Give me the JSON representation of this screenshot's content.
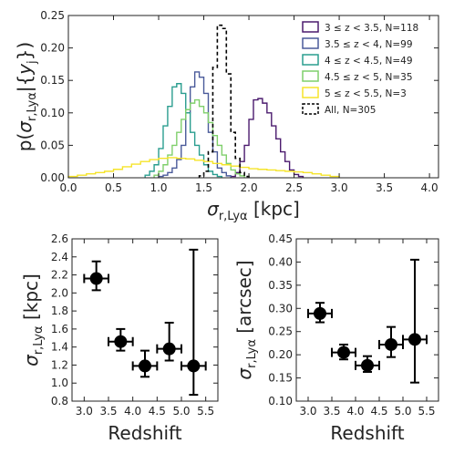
{
  "chart_data": [
    {
      "type": "histogram",
      "xlabel": "σ_r,Lyα [kpc]",
      "ylabel": "p(σ_r,Lyα | {y_j})",
      "xlim": [
        0.0,
        4.1
      ],
      "ylim": [
        0.0,
        0.25
      ],
      "xticks": [
        "0.0",
        "0.5",
        "1.0",
        "1.5",
        "2.0",
        "2.5",
        "3.0",
        "3.5",
        "4.0"
      ],
      "yticks": [
        "0.00",
        "0.05",
        "0.10",
        "0.15",
        "0.20",
        "0.25"
      ],
      "bin_width": 0.05,
      "legend_position": "top-right",
      "series": [
        {
          "name": "3 ≤ z < 3.5, N=118",
          "color": "#4b1b6e",
          "dashed": false,
          "bins": [
            [
              1.8,
              0.002
            ],
            [
              1.85,
              0.008
            ],
            [
              1.9,
              0.025
            ],
            [
              1.95,
              0.05
            ],
            [
              2.0,
              0.09
            ],
            [
              2.05,
              0.12
            ],
            [
              2.1,
              0.122
            ],
            [
              2.15,
              0.115
            ],
            [
              2.2,
              0.1
            ],
            [
              2.25,
              0.08
            ],
            [
              2.3,
              0.06
            ],
            [
              2.35,
              0.04
            ],
            [
              2.4,
              0.025
            ],
            [
              2.45,
              0.012
            ],
            [
              2.5,
              0.005
            ],
            [
              2.55,
              0.002
            ]
          ]
        },
        {
          "name": "3.5 ≤ z < 4, N=99",
          "color": "#4a5a9a",
          "dashed": false,
          "bins": [
            [
              1.0,
              0.002
            ],
            [
              1.05,
              0.004
            ],
            [
              1.1,
              0.008
            ],
            [
              1.15,
              0.015
            ],
            [
              1.2,
              0.028
            ],
            [
              1.25,
              0.05
            ],
            [
              1.3,
              0.1
            ],
            [
              1.35,
              0.14
            ],
            [
              1.4,
              0.163
            ],
            [
              1.45,
              0.155
            ],
            [
              1.5,
              0.13
            ],
            [
              1.55,
              0.07
            ],
            [
              1.6,
              0.04
            ],
            [
              1.65,
              0.015
            ],
            [
              1.7,
              0.008
            ],
            [
              1.75,
              0.003
            ]
          ]
        },
        {
          "name": "4 ≤ z < 4.5, N=49",
          "color": "#2a9d8f",
          "dashed": false,
          "bins": [
            [
              0.85,
              0.004
            ],
            [
              0.9,
              0.01
            ],
            [
              0.95,
              0.02
            ],
            [
              1.0,
              0.045
            ],
            [
              1.05,
              0.08
            ],
            [
              1.1,
              0.11
            ],
            [
              1.15,
              0.14
            ],
            [
              1.2,
              0.145
            ],
            [
              1.25,
              0.13
            ],
            [
              1.3,
              0.1
            ],
            [
              1.35,
              0.07
            ],
            [
              1.4,
              0.05
            ],
            [
              1.45,
              0.035
            ],
            [
              1.5,
              0.02
            ],
            [
              1.55,
              0.01
            ],
            [
              1.6,
              0.005
            ],
            [
              1.65,
              0.002
            ]
          ]
        },
        {
          "name": "4.5 ≤ z < 5, N=35",
          "color": "#7fcf6b",
          "dashed": false,
          "bins": [
            [
              0.95,
              0.004
            ],
            [
              1.0,
              0.01
            ],
            [
              1.05,
              0.02
            ],
            [
              1.1,
              0.035
            ],
            [
              1.15,
              0.05
            ],
            [
              1.2,
              0.07
            ],
            [
              1.25,
              0.09
            ],
            [
              1.3,
              0.105
            ],
            [
              1.35,
              0.115
            ],
            [
              1.4,
              0.12
            ],
            [
              1.45,
              0.11
            ],
            [
              1.5,
              0.1
            ],
            [
              1.55,
              0.085
            ],
            [
              1.6,
              0.065
            ],
            [
              1.65,
              0.05
            ],
            [
              1.7,
              0.035
            ],
            [
              1.75,
              0.022
            ],
            [
              1.8,
              0.012
            ],
            [
              1.85,
              0.006
            ],
            [
              1.9,
              0.003
            ]
          ]
        },
        {
          "name": "5 ≤ z < 5.5, N=3",
          "color": "#f5e42a",
          "dashed": false,
          "bins": [
            [
              0.0,
              0.002
            ],
            [
              0.1,
              0.004
            ],
            [
              0.2,
              0.006
            ],
            [
              0.3,
              0.008
            ],
            [
              0.4,
              0.01
            ],
            [
              0.5,
              0.013
            ],
            [
              0.6,
              0.017
            ],
            [
              0.7,
              0.021
            ],
            [
              0.8,
              0.025
            ],
            [
              0.9,
              0.028
            ],
            [
              1.0,
              0.03
            ],
            [
              1.1,
              0.031
            ],
            [
              1.2,
              0.03
            ],
            [
              1.3,
              0.029
            ],
            [
              1.4,
              0.027
            ],
            [
              1.5,
              0.025
            ],
            [
              1.6,
              0.022
            ],
            [
              1.7,
              0.02
            ],
            [
              1.8,
              0.018
            ],
            [
              1.9,
              0.016
            ],
            [
              2.0,
              0.014
            ],
            [
              2.1,
              0.013
            ],
            [
              2.2,
              0.012
            ],
            [
              2.3,
              0.011
            ],
            [
              2.4,
              0.01
            ],
            [
              2.5,
              0.009
            ],
            [
              2.6,
              0.008
            ],
            [
              2.7,
              0.006
            ],
            [
              2.8,
              0.004
            ],
            [
              2.9,
              0.002
            ]
          ]
        },
        {
          "name": "All, N=305",
          "color": "#000000",
          "dashed": true,
          "bins": [
            [
              1.45,
              0.003
            ],
            [
              1.5,
              0.01
            ],
            [
              1.55,
              0.04
            ],
            [
              1.6,
              0.17
            ],
            [
              1.65,
              0.235
            ],
            [
              1.7,
              0.23
            ],
            [
              1.75,
              0.16
            ],
            [
              1.8,
              0.07
            ],
            [
              1.85,
              0.03
            ],
            [
              1.9,
              0.008
            ],
            [
              1.95,
              0.002
            ]
          ]
        }
      ]
    },
    {
      "type": "errorbar",
      "xlabel": "Redshift",
      "ylabel": "σ_r,Lyα [kpc]",
      "xlim": [
        2.75,
        5.75
      ],
      "ylim": [
        0.8,
        2.6
      ],
      "xticks": [
        "3.0",
        "3.5",
        "4.0",
        "4.5",
        "5.0",
        "5.5"
      ],
      "yticks": [
        "0.8",
        "1.0",
        "1.2",
        "1.4",
        "1.6",
        "1.8",
        "2.0",
        "2.2",
        "2.4",
        "2.6"
      ],
      "points": [
        {
          "x": 3.25,
          "xerr": 0.25,
          "y": 2.16,
          "ylo": 2.03,
          "yhi": 2.35
        },
        {
          "x": 3.75,
          "xerr": 0.25,
          "y": 1.46,
          "ylo": 1.36,
          "yhi": 1.6
        },
        {
          "x": 4.25,
          "xerr": 0.25,
          "y": 1.19,
          "ylo": 1.07,
          "yhi": 1.36
        },
        {
          "x": 4.75,
          "xerr": 0.25,
          "y": 1.38,
          "ylo": 1.25,
          "yhi": 1.67
        },
        {
          "x": 5.25,
          "xerr": 0.25,
          "y": 1.19,
          "ylo": 0.87,
          "yhi": 2.48
        }
      ]
    },
    {
      "type": "errorbar",
      "xlabel": "Redshift",
      "ylabel": "σ_r,Lyα [arcsec]",
      "xlim": [
        2.75,
        5.75
      ],
      "ylim": [
        0.1,
        0.45
      ],
      "xticks": [
        "3.0",
        "3.5",
        "4.0",
        "4.5",
        "5.0",
        "5.5"
      ],
      "yticks": [
        "0.10",
        "0.15",
        "0.20",
        "0.25",
        "0.30",
        "0.35",
        "0.40",
        "0.45"
      ],
      "points": [
        {
          "x": 3.25,
          "xerr": 0.25,
          "y": 0.289,
          "ylo": 0.27,
          "yhi": 0.312
        },
        {
          "x": 3.75,
          "xerr": 0.25,
          "y": 0.205,
          "ylo": 0.19,
          "yhi": 0.222
        },
        {
          "x": 4.25,
          "xerr": 0.25,
          "y": 0.177,
          "ylo": 0.163,
          "yhi": 0.197
        },
        {
          "x": 4.75,
          "xerr": 0.25,
          "y": 0.222,
          "ylo": 0.195,
          "yhi": 0.26
        },
        {
          "x": 5.25,
          "xerr": 0.25,
          "y": 0.233,
          "ylo": 0.14,
          "yhi": 0.405
        }
      ]
    }
  ]
}
